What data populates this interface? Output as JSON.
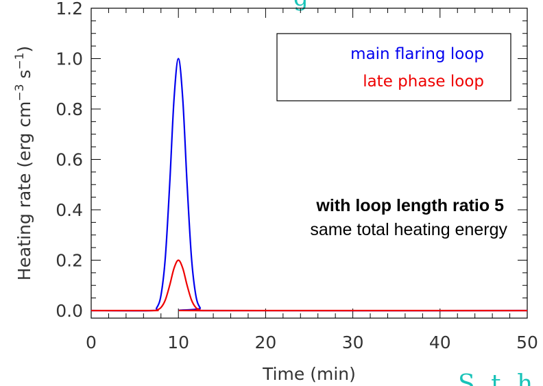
{
  "chart_data": {
    "type": "line",
    "xlabel": "Time (min)",
    "ylabel": "Heating rate (erg cm",
    "ylabel_sup1": "−3",
    "ylabel_mid": " s",
    "ylabel_sup2": "−1",
    "ylabel_end": ")",
    "xlim": [
      0,
      50
    ],
    "ylim": [
      -0.03,
      1.2
    ],
    "x_ticks": [
      0,
      10,
      20,
      30,
      40,
      50
    ],
    "x_tick_labels": [
      "0",
      "10",
      "20",
      "30",
      "40",
      "50"
    ],
    "y_ticks": [
      0.0,
      0.2,
      0.4,
      0.6,
      0.8,
      1.0,
      1.2
    ],
    "y_tick_labels": [
      "0.0",
      "0.2",
      "0.4",
      "0.6",
      "0.8",
      "1.0",
      "1.2"
    ],
    "series": [
      {
        "name": "main flaring loop",
        "color": "#0000ee",
        "x": [
          0,
          7.0,
          7.5,
          8.0,
          8.5,
          9.0,
          9.5,
          10.0,
          10.5,
          11.0,
          11.5,
          12.0,
          12.5,
          13.0,
          50
        ],
        "y": [
          0,
          0.0,
          0.01,
          0.06,
          0.21,
          0.5,
          0.84,
          1.0,
          0.84,
          0.5,
          0.21,
          0.06,
          0.01,
          0.0,
          0
        ]
      },
      {
        "name": "late phase loop",
        "color": "#ee0000",
        "x": [
          0,
          7.0,
          7.5,
          8.0,
          8.5,
          9.0,
          9.5,
          10.0,
          10.5,
          11.0,
          11.5,
          12.0,
          12.5,
          13.0,
          50
        ],
        "y": [
          0,
          0.0,
          0.002,
          0.012,
          0.042,
          0.1,
          0.168,
          0.2,
          0.168,
          0.1,
          0.042,
          0.012,
          0.002,
          0.0,
          0
        ]
      }
    ],
    "legend_position": "top-right",
    "annotations": [
      "with loop length ratio 5",
      "same total heating energy"
    ]
  },
  "background_text": [
    "g",
    "S t h"
  ]
}
